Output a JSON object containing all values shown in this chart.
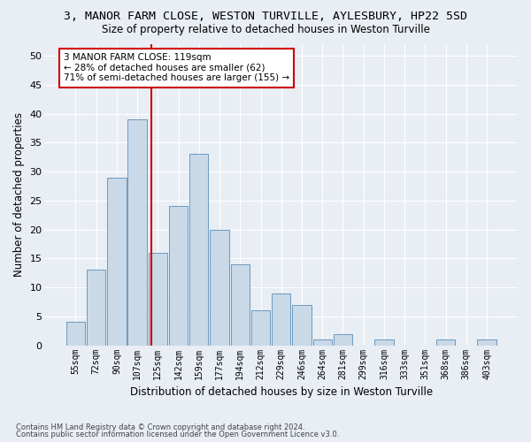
{
  "title_line1": "3, MANOR FARM CLOSE, WESTON TURVILLE, AYLESBURY, HP22 5SD",
  "title_line2": "Size of property relative to detached houses in Weston Turville",
  "xlabel": "Distribution of detached houses by size in Weston Turville",
  "ylabel": "Number of detached properties",
  "bin_labels": [
    "55sqm",
    "72sqm",
    "90sqm",
    "107sqm",
    "125sqm",
    "142sqm",
    "159sqm",
    "177sqm",
    "194sqm",
    "212sqm",
    "229sqm",
    "246sqm",
    "264sqm",
    "281sqm",
    "299sqm",
    "316sqm",
    "333sqm",
    "351sqm",
    "368sqm",
    "386sqm",
    "403sqm"
  ],
  "bar_heights": [
    4,
    13,
    29,
    39,
    16,
    24,
    33,
    20,
    14,
    6,
    9,
    7,
    1,
    2,
    0,
    1,
    0,
    0,
    1,
    0,
    1
  ],
  "bar_color": "#c9d9e8",
  "bar_edgecolor": "#5b8db8",
  "vline_x": 3.7,
  "vline_color": "#cc0000",
  "annotation_text": "3 MANOR FARM CLOSE: 119sqm\n← 28% of detached houses are smaller (62)\n71% of semi-detached houses are larger (155) →",
  "annotation_box_color": "#cc0000",
  "ylim": [
    0,
    52
  ],
  "yticks": [
    0,
    5,
    10,
    15,
    20,
    25,
    30,
    35,
    40,
    45,
    50
  ],
  "footer_line1": "Contains HM Land Registry data © Crown copyright and database right 2024.",
  "footer_line2": "Contains public sector information licensed under the Open Government Licence v3.0.",
  "background_color": "#e8eef4",
  "grid_color": "#ffffff"
}
